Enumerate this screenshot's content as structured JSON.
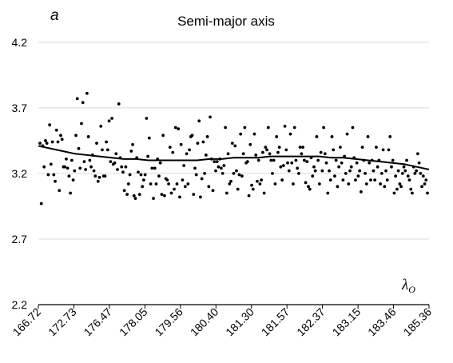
{
  "chart_data": {
    "type": "scatter",
    "panel_label": "a",
    "title": "Semi-major axis",
    "xlabel": "λ",
    "xlabel_sub": "O",
    "ylabel": "",
    "ylim": [
      2.2,
      4.4
    ],
    "y_ticks": [
      "2.2",
      "2.7",
      "3.2",
      "3.7",
      "4.2"
    ],
    "y_tick_values": [
      2.2,
      2.7,
      3.2,
      3.7,
      4.2
    ],
    "x_ticks": [
      "166.72",
      "172.73",
      "176.47",
      "178.05",
      "179.56",
      "180.40",
      "181.30",
      "181.57",
      "182.37",
      "183.15",
      "183.46",
      "185.36"
    ],
    "grid": "horizontal",
    "legend": "none",
    "point_color": "#000000",
    "grid_color": "#d9d9d9",
    "series": [
      {
        "kind": "points",
        "values": [
          3.43,
          2.97,
          3.41,
          3.25,
          3.45,
          3.43,
          3.19,
          3.57,
          3.27,
          3.44,
          3.19,
          3.14,
          3.53,
          3.44,
          3.07,
          3.49,
          3.46,
          3.25,
          3.25,
          3.31,
          3.24,
          3.18,
          3.05,
          3.3,
          3.15,
          3.22,
          3.49,
          3.77,
          3.39,
          3.24,
          3.58,
          3.74,
          3.29,
          3.23,
          3.81,
          3.48,
          3.3,
          3.25,
          3.34,
          3.22,
          3.18,
          3.43,
          3.14,
          3.17,
          3.56,
          3.38,
          3.18,
          3.18,
          3.44,
          3.38,
          3.6,
          3.29,
          3.62,
          3.27,
          3.28,
          3.35,
          3.23,
          3.73,
          3.32,
          3.25,
          3.21,
          3.07,
          3.25,
          3.04,
          3.12,
          3.19,
          3.37,
          3.42,
          3.03,
          3.01,
          3.32,
          3.21,
          3.04,
          3.19,
          3.1,
          3.15,
          3.19,
          3.62,
          3.33,
          3.47,
          3.12,
          3.24,
          3.01,
          3.24,
          3.12,
          3.31,
          3.18,
          3.28,
          3.04,
          3.49,
          3.03,
          3.16,
          3.15,
          3.12,
          3.4,
          3.05,
          3.36,
          3.08,
          3.55,
          3.12,
          3.54,
          3.02,
          3.42,
          3.15,
          3.26,
          3.1,
          3.35,
          3.12,
          3.38,
          3.48,
          3.49,
          3.04,
          3.24,
          3.19,
          3.43,
          3.6,
          3.02,
          3.16,
          3.44,
          3.2,
          3.34,
          3.48,
          3.1,
          3.63,
          3.31,
          3.07,
          3.29,
          3.22,
          3.29,
          3.25,
          3.31,
          3.24,
          3.2,
          3.26,
          3.55,
          3.05,
          3.35,
          3.12,
          3.14,
          3.43,
          3.2,
          3.41,
          3.22,
          3.08,
          3.19,
          3.5,
          3.18,
          3.35,
          3.55,
          3.28,
          3.29,
          3.03,
          3.42,
          3.11,
          3.08,
          3.5,
          3.34,
          3.14,
          3.3,
          3.12,
          3.15,
          3.36,
          3.05,
          3.4,
          3.38,
          3.55,
          3.35,
          3.3,
          3.2,
          3.3,
          3.12,
          3.48,
          3.36,
          3.4,
          3.25,
          3.15,
          3.26,
          3.56,
          3.38,
          3.28,
          3.22,
          3.5,
          3.28,
          3.12,
          3.55,
          3.3,
          3.24,
          3.2,
          3.4,
          3.35,
          3.4,
          3.3,
          3.13,
          3.29,
          3.1,
          3.08,
          3.32,
          3.18,
          3.25,
          3.22,
          3.48,
          3.3,
          3.12,
          3.36,
          3.22,
          3.55,
          3.35,
          3.28,
          3.05,
          3.22,
          3.15,
          3.48,
          3.38,
          3.18,
          3.3,
          3.1,
          3.25,
          3.4,
          3.28,
          3.15,
          3.33,
          3.2,
          3.5,
          3.12,
          3.22,
          3.25,
          3.55,
          3.32,
          3.15,
          3.28,
          3.18,
          3.22,
          3.06,
          3.4,
          3.3,
          3.2,
          3.12,
          3.48,
          3.28,
          3.15,
          3.3,
          3.22,
          3.15,
          3.4,
          3.25,
          3.3,
          3.12,
          3.2,
          3.38,
          3.1,
          3.22,
          3.15,
          3.38,
          3.48,
          3.25,
          3.3,
          3.05,
          3.18,
          3.08,
          3.22,
          3.12,
          3.1,
          3.2,
          3.25,
          3.22,
          3.3,
          3.18,
          3.15,
          3.08,
          3.05,
          3.25,
          3.2,
          3.22,
          3.35,
          3.28,
          3.2,
          3.1,
          3.18,
          3.12,
          3.15,
          3.05
        ]
      },
      {
        "kind": "trend",
        "values": [
          3.41,
          3.39,
          3.37,
          3.35,
          3.34,
          3.33,
          3.32,
          3.31,
          3.31,
          3.3,
          3.3,
          3.3,
          3.3,
          3.3,
          3.31,
          3.31,
          3.32,
          3.32,
          3.32,
          3.33,
          3.33,
          3.33,
          3.33,
          3.33,
          3.32,
          3.32,
          3.31,
          3.3,
          3.29,
          3.28,
          3.27,
          3.25,
          3.23
        ]
      }
    ]
  }
}
